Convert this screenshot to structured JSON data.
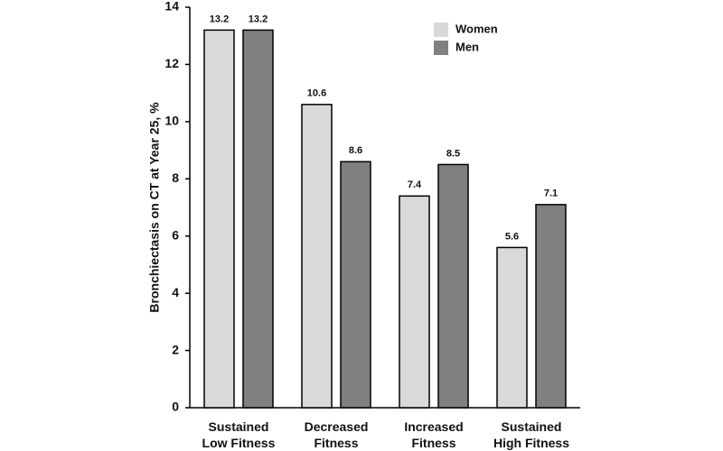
{
  "chart_data": {
    "type": "bar",
    "y_label": "Bronchiectasis on CT at Year 25, %",
    "categories": [
      "Sustained Low Fitness",
      "Decreased Fitness",
      "Increased Fitness",
      "Sustained High Fitness"
    ],
    "series": [
      {
        "name": "Women",
        "color": "#d9d9d9",
        "values": [
          13.2,
          10.6,
          7.4,
          5.6
        ]
      },
      {
        "name": "Men",
        "color": "#808080",
        "values": [
          13.2,
          8.6,
          8.5,
          7.1
        ]
      }
    ],
    "ylim": [
      0,
      14
    ],
    "yticks": [
      0,
      2,
      4,
      6,
      8,
      10,
      12,
      14
    ],
    "grid": false,
    "legend": "top-right"
  }
}
